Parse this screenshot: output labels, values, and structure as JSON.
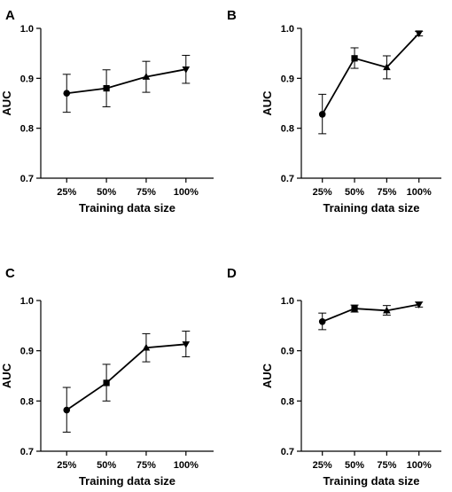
{
  "chart_data": [
    {
      "panel": "A",
      "type": "line",
      "categories": [
        "25%",
        "50%",
        "75%",
        "100%"
      ],
      "values": [
        0.87,
        0.88,
        0.903,
        0.918
      ],
      "error_low": [
        0.832,
        0.843,
        0.872,
        0.89
      ],
      "error_high": [
        0.908,
        0.917,
        0.934,
        0.946
      ],
      "markers": [
        "circle",
        "square",
        "triangle-up",
        "triangle-down"
      ],
      "xlabel": "Training data size",
      "ylabel": "AUC",
      "ylim": [
        0.7,
        1.0
      ],
      "yticks": [
        "0.7",
        "0.8",
        "0.9",
        "1.0"
      ],
      "grid": false
    },
    {
      "panel": "B",
      "type": "line",
      "categories": [
        "25%",
        "50%",
        "75%",
        "100%"
      ],
      "values": [
        0.828,
        0.94,
        0.922,
        0.99
      ],
      "error_low": [
        0.789,
        0.92,
        0.899,
        0.985
      ],
      "error_high": [
        0.868,
        0.961,
        0.945,
        0.994
      ],
      "markers": [
        "circle",
        "square",
        "triangle-up",
        "triangle-down"
      ],
      "xlabel": "Training data size",
      "ylabel": "AUC",
      "ylim": [
        0.7,
        1.0
      ],
      "yticks": [
        "0.7",
        "0.8",
        "0.9",
        "1.0"
      ],
      "grid": false
    },
    {
      "panel": "C",
      "type": "line",
      "categories": [
        "25%",
        "50%",
        "75%",
        "100%"
      ],
      "values": [
        0.782,
        0.836,
        0.906,
        0.913
      ],
      "error_low": [
        0.738,
        0.8,
        0.878,
        0.888
      ],
      "error_high": [
        0.827,
        0.873,
        0.934,
        0.939
      ],
      "markers": [
        "circle",
        "square",
        "triangle-up",
        "triangle-down"
      ],
      "xlabel": "Training data size",
      "ylabel": "AUC",
      "ylim": [
        0.7,
        1.0
      ],
      "yticks": [
        "0.7",
        "0.8",
        "0.9",
        "1.0"
      ],
      "grid": false
    },
    {
      "panel": "D",
      "type": "line",
      "categories": [
        "25%",
        "50%",
        "75%",
        "100%"
      ],
      "values": [
        0.958,
        0.984,
        0.98,
        0.992
      ],
      "error_low": [
        0.942,
        0.977,
        0.971,
        0.987
      ],
      "error_high": [
        0.975,
        0.991,
        0.99,
        0.997
      ],
      "markers": [
        "circle",
        "square",
        "triangle-up",
        "triangle-down"
      ],
      "xlabel": "Training data size",
      "ylabel": "AUC",
      "ylim": [
        0.7,
        1.0
      ],
      "yticks": [
        "0.7",
        "0.8",
        "0.9",
        "1.0"
      ],
      "grid": false
    }
  ]
}
